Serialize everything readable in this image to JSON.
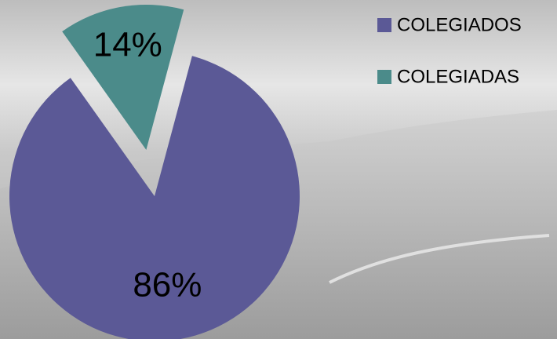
{
  "chart_data": {
    "type": "pie",
    "categories": [
      "COLEGIADOS",
      "COLEGIADAS"
    ],
    "values": [
      86,
      14
    ],
    "value_labels": [
      "86%",
      "14%"
    ],
    "colors": [
      "#5b5996",
      "#4b8b8a"
    ],
    "legend": "top-right",
    "exploded": [
      false,
      true
    ]
  }
}
